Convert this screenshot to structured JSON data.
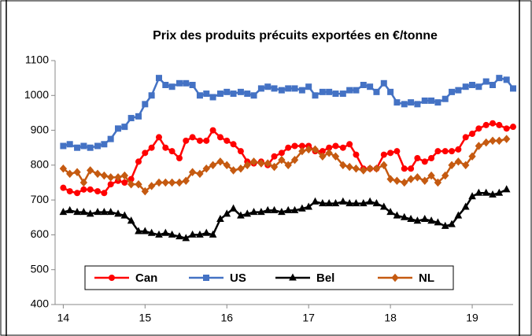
{
  "chart_data": {
    "type": "line",
    "title": "Prix des produits précuits exportées en €/tonne",
    "x": [
      14,
      14.08,
      14.17,
      14.25,
      14.33,
      14.42,
      14.5,
      14.58,
      14.67,
      14.75,
      14.83,
      14.92,
      15,
      15.08,
      15.17,
      15.25,
      15.33,
      15.42,
      15.5,
      15.58,
      15.67,
      15.75,
      15.83,
      15.92,
      16,
      16.08,
      16.17,
      16.25,
      16.33,
      16.42,
      16.5,
      16.58,
      16.67,
      16.75,
      16.83,
      16.92,
      17,
      17.08,
      17.17,
      17.25,
      17.33,
      17.42,
      17.5,
      17.58,
      17.67,
      17.75,
      17.83,
      17.92,
      18,
      18.08,
      18.17,
      18.25,
      18.33,
      18.42,
      18.5,
      18.58,
      18.67,
      18.75,
      18.83,
      18.92,
      19,
      19.08,
      19.17,
      19.25,
      19.33,
      19.42,
      19.5
    ],
    "series": [
      {
        "name": "Can",
        "color": "#ff0000",
        "marker": "circle",
        "values": [
          735,
          725,
          720,
          730,
          730,
          725,
          720,
          745,
          755,
          750,
          760,
          810,
          835,
          850,
          880,
          850,
          840,
          820,
          870,
          880,
          870,
          870,
          900,
          880,
          870,
          860,
          840,
          810,
          805,
          810,
          800,
          825,
          835,
          850,
          855,
          855,
          855,
          840,
          840,
          850,
          855,
          850,
          860,
          830,
          790,
          790,
          790,
          830,
          835,
          840,
          790,
          790,
          820,
          810,
          820,
          840,
          840,
          840,
          845,
          880,
          890,
          905,
          915,
          920,
          915,
          905,
          910
        ]
      },
      {
        "name": "US",
        "color": "#4472c4",
        "marker": "square",
        "values": [
          855,
          860,
          850,
          855,
          850,
          855,
          860,
          875,
          905,
          910,
          935,
          940,
          975,
          1000,
          1050,
          1030,
          1025,
          1035,
          1035,
          1030,
          1000,
          1005,
          995,
          1005,
          1010,
          1005,
          1010,
          1005,
          1000,
          1020,
          1025,
          1020,
          1015,
          1020,
          1020,
          1015,
          1025,
          1000,
          1010,
          1010,
          1005,
          1005,
          1015,
          1015,
          1030,
          1025,
          1010,
          1035,
          1010,
          980,
          975,
          980,
          975,
          985,
          985,
          980,
          990,
          1010,
          1015,
          1025,
          1030,
          1025,
          1040,
          1030,
          1050,
          1045,
          1020
        ]
      },
      {
        "name": "Bel",
        "color": "#000000",
        "marker": "triangle",
        "values": [
          665,
          670,
          665,
          665,
          660,
          665,
          665,
          665,
          660,
          655,
          640,
          610,
          610,
          605,
          600,
          605,
          600,
          595,
          590,
          600,
          600,
          605,
          600,
          645,
          660,
          675,
          655,
          660,
          665,
          665,
          670,
          670,
          665,
          670,
          670,
          675,
          680,
          695,
          690,
          690,
          690,
          695,
          690,
          690,
          690,
          695,
          690,
          680,
          665,
          655,
          650,
          645,
          640,
          645,
          640,
          635,
          625,
          630,
          655,
          680,
          710,
          720,
          720,
          715,
          720,
          730,
          null
        ]
      },
      {
        "name": "NL",
        "color": "#c55a11",
        "marker": "diamond",
        "values": [
          790,
          775,
          780,
          750,
          785,
          775,
          770,
          765,
          765,
          770,
          745,
          745,
          725,
          740,
          750,
          750,
          750,
          750,
          755,
          780,
          775,
          790,
          800,
          810,
          800,
          785,
          790,
          800,
          810,
          805,
          805,
          795,
          815,
          800,
          815,
          840,
          845,
          845,
          825,
          835,
          825,
          800,
          795,
          790,
          785,
          790,
          790,
          800,
          760,
          755,
          750,
          760,
          765,
          755,
          770,
          750,
          770,
          800,
          810,
          800,
          825,
          855,
          865,
          870,
          870,
          875,
          null
        ]
      }
    ],
    "xlim": [
      13.9,
      19.5
    ],
    "xticks": [
      14,
      15,
      16,
      17,
      18,
      19
    ],
    "ylim": [
      400,
      1100
    ],
    "yticks": [
      400,
      500,
      600,
      700,
      800,
      900,
      1000,
      1100
    ],
    "legend": "bottom"
  }
}
